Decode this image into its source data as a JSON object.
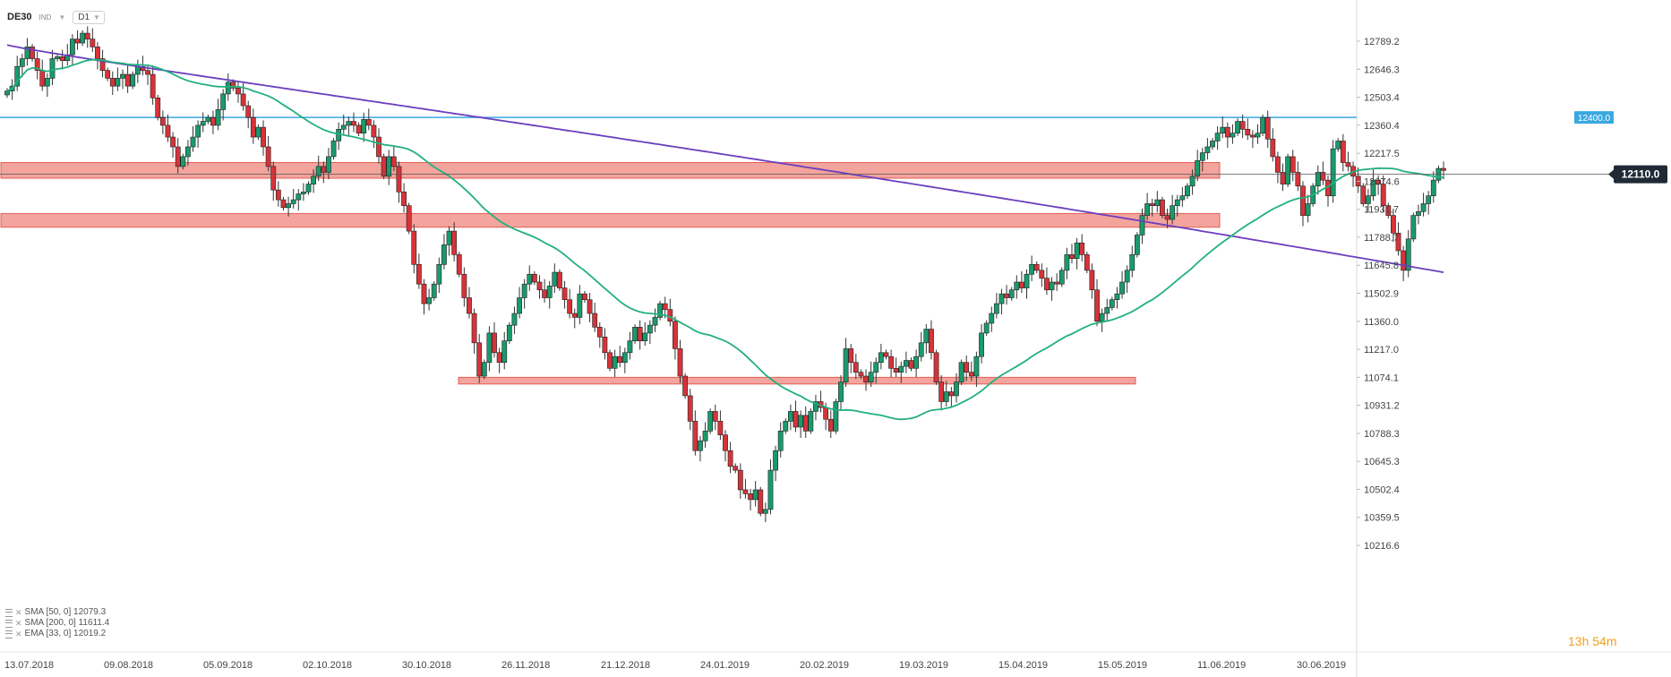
{
  "header": {
    "symbol": "DE30",
    "market": "IND",
    "timeframe": "D1"
  },
  "indicators": [
    {
      "label": "SMA [50, 0] 12079.3"
    },
    {
      "label": "SMA [200, 0] 11611.4"
    },
    {
      "label": "EMA [33, 0] 12019.2"
    }
  ],
  "timer": {
    "hours": "13",
    "h_unit": "h",
    "minutes": "54",
    "m_unit": "m"
  },
  "colors": {
    "bull": "#1a9a6c",
    "bear": "#d6333a",
    "sma50": "#22b07d",
    "sma200": "#6b3fbf",
    "resistance": "#3aa8e0",
    "zone": "#f08a80",
    "price_tag": "#1f2a35"
  },
  "chart_data": {
    "type": "candlestick",
    "symbol": "DE30",
    "timeframe": "D1",
    "y_ticks": [
      "12789.2",
      "12646.3",
      "12503.4",
      "12360.4",
      "12217.5",
      "12074.6",
      "11931.7",
      "11788.7",
      "11645.8",
      "11502.9",
      "11360.0",
      "11217.0",
      "11074.1",
      "10931.2",
      "10788.3",
      "10645.3",
      "10502.4",
      "10359.5",
      "10216.6"
    ],
    "ylim": [
      10216.6,
      12789.2
    ],
    "x_ticks": [
      "13.07.2018",
      "09.08.2018",
      "05.09.2018",
      "02.10.2018",
      "30.10.2018",
      "26.11.2018",
      "21.12.2018",
      "24.01.2019",
      "20.02.2019",
      "19.03.2019",
      "15.04.2019",
      "15.05.2019",
      "11.06.2019",
      "30.06.2019"
    ],
    "last_price": "12110.0",
    "resistance_level": "12400.0",
    "resistance_value": 12400.0,
    "zones": [
      {
        "low": 12090,
        "high": 12170
      },
      {
        "low": 11840,
        "high": 11910
      },
      {
        "low": 11040,
        "high": 11074
      }
    ],
    "closes": [
      12535,
      12560,
      12660,
      12700,
      12760,
      12700,
      12640,
      12560,
      12600,
      12700,
      12710,
      12690,
      12720,
      12800,
      12780,
      12830,
      12800,
      12760,
      12700,
      12640,
      12600,
      12560,
      12600,
      12620,
      12560,
      12620,
      12660,
      12640,
      12620,
      12500,
      12400,
      12360,
      12300,
      12250,
      12150,
      12200,
      12250,
      12300,
      12360,
      12380,
      12400,
      12360,
      12440,
      12520,
      12580,
      12550,
      12520,
      12460,
      12400,
      12300,
      12350,
      12250,
      12150,
      12030,
      11980,
      11940,
      11960,
      11980,
      12010,
      12020,
      12060,
      12100,
      12150,
      12120,
      12200,
      12280,
      12340,
      12360,
      12380,
      12360,
      12320,
      12390,
      12360,
      12300,
      12200,
      12100,
      12200,
      12150,
      12020,
      11950,
      11820,
      11650,
      11550,
      11450,
      11480,
      11550,
      11650,
      11750,
      11820,
      11700,
      11600,
      11480,
      11400,
      11250,
      11080,
      11150,
      11300,
      11200,
      11150,
      11260,
      11340,
      11400,
      11480,
      11550,
      11600,
      11560,
      11520,
      11480,
      11540,
      11610,
      11530,
      11470,
      11400,
      11380,
      11500,
      11470,
      11400,
      11330,
      11280,
      11200,
      11120,
      11180,
      11150,
      11200,
      11260,
      11330,
      11260,
      11300,
      11340,
      11380,
      11450,
      11420,
      11360,
      11220,
      11080,
      10980,
      10850,
      10700,
      10750,
      10800,
      10900,
      10850,
      10780,
      10700,
      10620,
      10600,
      10500,
      10480,
      10450,
      10500,
      10380,
      10400,
      10600,
      10700,
      10800,
      10850,
      10900,
      10820,
      10880,
      10800,
      10900,
      10950,
      10920,
      10860,
      10800,
      10950,
      11050,
      11220,
      11150,
      11100,
      11080,
      11050,
      11100,
      11150,
      11200,
      11180,
      11120,
      11100,
      11130,
      11160,
      11120,
      11180,
      11250,
      11320,
      11200,
      11050,
      10950,
      11000,
      10980,
      11050,
      11150,
      11100,
      11080,
      11180,
      11300,
      11350,
      11400,
      11450,
      11500,
      11480,
      11520,
      11560,
      11530,
      11600,
      11650,
      11620,
      11580,
      11520,
      11560,
      11550,
      11620,
      11700,
      11680,
      11760,
      11700,
      11620,
      11520,
      11360,
      11400,
      11430,
      11470,
      11500,
      11560,
      11620,
      11700,
      11800,
      11900,
      11960,
      11950,
      11980,
      11900,
      11880,
      11950,
      11980,
      12000,
      12050,
      12100,
      12180,
      12220,
      12250,
      12280,
      12320,
      12350,
      12300,
      12320,
      12380,
      12340,
      12310,
      12300,
      12320,
      12400,
      12290,
      12200,
      12120,
      12060,
      12200,
      12120,
      12050,
      11900,
      11960,
      12050,
      12120,
      12080,
      12000,
      12240,
      12280,
      12170,
      12150,
      12100,
      12050,
      11960,
      12000,
      12080,
      12060,
      11950,
      11900,
      11810,
      11720,
      11620,
      11780,
      11900,
      11920,
      11960,
      12000,
      12080,
      12140,
      12130
    ]
  }
}
